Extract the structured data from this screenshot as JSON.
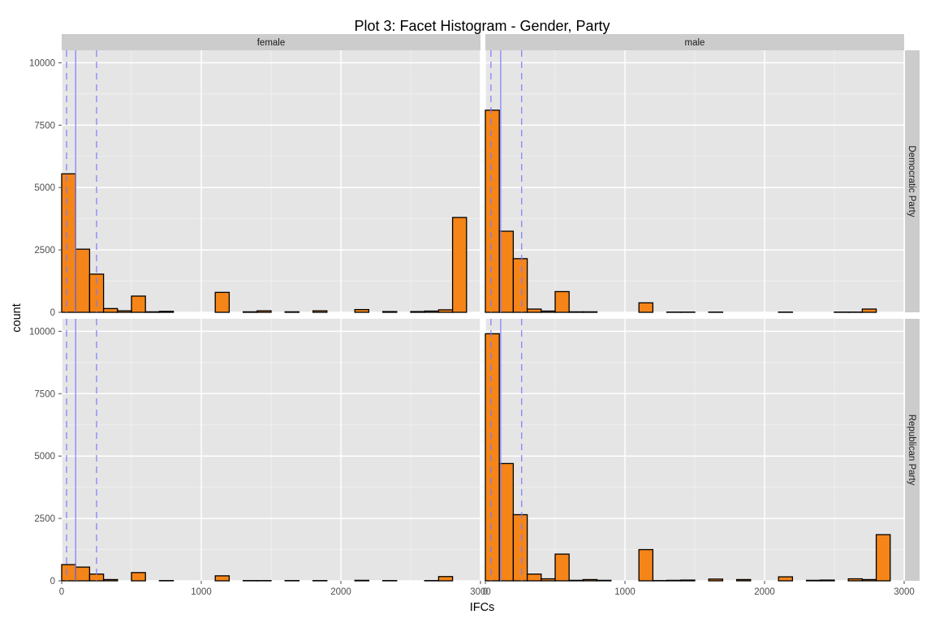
{
  "chart_data": {
    "type": "bar",
    "subtype": "facet-histogram",
    "title": "Plot 3: Facet Histogram - Gender, Party",
    "xlabel": "IFCs",
    "ylabel": "count",
    "xlim": [
      0,
      3000
    ],
    "ylim": [
      0,
      10500
    ],
    "x_ticks": [
      0,
      1000,
      2000,
      3000
    ],
    "y_ticks": [
      0,
      2500,
      5000,
      7500,
      10000
    ],
    "x_tick_labels": [
      "0",
      "1000",
      "2000",
      "3000"
    ],
    "y_tick_labels": [
      "0",
      "2500",
      "5000",
      "7500",
      "10000"
    ],
    "bin_width": 100,
    "bin_start": 0,
    "bar_fill": "#F58518",
    "bar_stroke": "#000000",
    "panel_background": "#E5E5E5",
    "strip_background": "#CCCCCC",
    "gridline_color": "#FFFFFF",
    "reference_line_color": "#7B7BFF",
    "grid": true,
    "legend": "none",
    "facet_columns": [
      "female",
      "male"
    ],
    "facet_rows": [
      "Democratic Party",
      "Republican Party"
    ],
    "panels": [
      {
        "column": "female",
        "row": "Democratic Party",
        "counts": [
          5550,
          2530,
          1530,
          150,
          60,
          650,
          20,
          40,
          0,
          0,
          0,
          800,
          0,
          20,
          60,
          0,
          20,
          0,
          60,
          0,
          0,
          110,
          0,
          30,
          0,
          30,
          50,
          100,
          3800,
          0
        ],
        "vlines": {
          "solid": [
            100
          ],
          "dashed": [
            35,
            250
          ]
        }
      },
      {
        "column": "male",
        "row": "Democratic Party",
        "counts": [
          8100,
          3250,
          2150,
          130,
          50,
          830,
          20,
          20,
          0,
          0,
          0,
          380,
          0,
          10,
          10,
          0,
          10,
          0,
          0,
          0,
          0,
          10,
          0,
          0,
          0,
          10,
          10,
          130,
          0,
          0
        ],
        "vlines": {
          "solid": [
            110
          ],
          "dashed": [
            40,
            260
          ]
        }
      },
      {
        "column": "female",
        "row": "Republican Party",
        "counts": [
          650,
          550,
          270,
          50,
          0,
          330,
          0,
          10,
          0,
          0,
          0,
          200,
          0,
          10,
          10,
          0,
          10,
          0,
          10,
          0,
          0,
          20,
          0,
          10,
          0,
          0,
          10,
          170,
          0,
          0
        ],
        "vlines": {
          "solid": [
            100
          ],
          "dashed": [
            35,
            250
          ]
        }
      },
      {
        "column": "male",
        "row": "Republican Party",
        "counts": [
          9900,
          4700,
          2650,
          270,
          80,
          1070,
          20,
          50,
          20,
          0,
          0,
          1250,
          10,
          20,
          30,
          0,
          70,
          0,
          50,
          0,
          0,
          160,
          0,
          20,
          30,
          0,
          80,
          50,
          1850,
          0
        ],
        "vlines": {
          "solid": [
            110
          ],
          "dashed": [
            40,
            260
          ]
        }
      }
    ]
  }
}
